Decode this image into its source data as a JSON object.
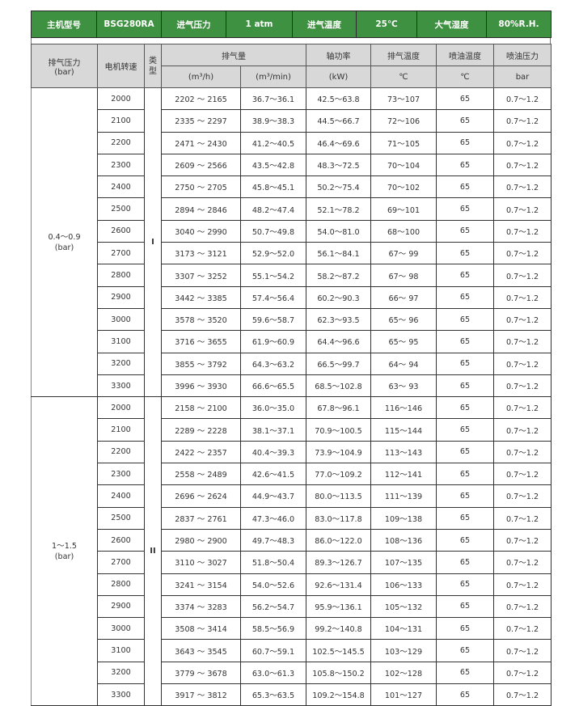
{
  "info_bar": [
    {
      "label": "主机型号",
      "value": "BSG280RA"
    },
    {
      "label": "进气压力",
      "value": "1 atm"
    },
    {
      "label": "进气温度",
      "value": "25℃"
    },
    {
      "label": "大气湿度",
      "value": "80%R.H."
    }
  ],
  "colors": {
    "header_green": "#3d9140",
    "header_gray": "#d8d8d8"
  },
  "columns": {
    "pressure": "排气压力",
    "pressure_unit": "(bar)",
    "speed": "电机转速",
    "type": "类型",
    "flow": "排气量",
    "flow_unit_h": "(m³/h)",
    "flow_unit_min": "(m³/min)",
    "power": "轴功率",
    "power_unit": "(kW)",
    "exhaust_temp": "排气温度",
    "exhaust_temp_unit": "℃",
    "oil_temp": "喷油温度",
    "oil_temp_unit": "℃",
    "oil_pressure": "喷油压力",
    "oil_pressure_unit": "bar"
  },
  "groups": [
    {
      "pressure": "0.4～0.9",
      "unit": "(bar)",
      "type": "I",
      "rows": [
        [
          "2000",
          "2202 ～ 2165",
          "36.7～36.1",
          "42.5～63.8",
          "73～107",
          "65",
          "0.7～1.2"
        ],
        [
          "2100",
          "2335 ～ 2297",
          "38.9～38.3",
          "44.5～66.7",
          "72～106",
          "65",
          "0.7～1.2"
        ],
        [
          "2200",
          "2471 ～ 2430",
          "41.2～40.5",
          "46.4～69.6",
          "71～105",
          "65",
          "0.7～1.2"
        ],
        [
          "2300",
          "2609 ～ 2566",
          "43.5～42.8",
          "48.3～72.5",
          "70～104",
          "65",
          "0.7～1.2"
        ],
        [
          "2400",
          "2750 ～ 2705",
          "45.8～45.1",
          "50.2～75.4",
          "70～102",
          "65",
          "0.7～1.2"
        ],
        [
          "2500",
          "2894 ～ 2846",
          "48.2～47.4",
          "52.1～78.2",
          "69～101",
          "65",
          "0.7～1.2"
        ],
        [
          "2600",
          "3040 ～ 2990",
          "50.7～49.8",
          "54.0～81.0",
          "68～100",
          "65",
          "0.7～1.2"
        ],
        [
          "2700",
          "3173 ～ 3121",
          "52.9～52.0",
          "56.1～84.1",
          "67～ 99",
          "65",
          "0.7～1.2"
        ],
        [
          "2800",
          "3307 ～ 3252",
          "55.1～54.2",
          "58.2～87.2",
          "67～ 98",
          "65",
          "0.7～1.2"
        ],
        [
          "2900",
          "3442 ～ 3385",
          "57.4～56.4",
          "60.2～90.3",
          "66～ 97",
          "65",
          "0.7～1.2"
        ],
        [
          "3000",
          "3578 ～ 3520",
          "59.6～58.7",
          "62.3～93.5",
          "65～ 96",
          "65",
          "0.7～1.2"
        ],
        [
          "3100",
          "3716 ～ 3655",
          "61.9～60.9",
          "64.4～96.6",
          "65～ 95",
          "65",
          "0.7～1.2"
        ],
        [
          "3200",
          "3855 ～ 3792",
          "64.3～63.2",
          "66.5～99.7",
          "64～ 94",
          "65",
          "0.7～1.2"
        ],
        [
          "3300",
          "3996 ～ 3930",
          "66.6～65.5",
          "68.5～102.8",
          "63～ 93",
          "65",
          "0.7～1.2"
        ]
      ]
    },
    {
      "pressure": "1～1.5",
      "unit": "(bar)",
      "type": "II",
      "rows": [
        [
          "2000",
          "2158 ～ 2100",
          "36.0～35.0",
          "67.8～96.1",
          "116～146",
          "65",
          "0.7～1.2"
        ],
        [
          "2100",
          "2289 ～ 2228",
          "38.1～37.1",
          "70.9～100.5",
          "115～144",
          "65",
          "0.7～1.2"
        ],
        [
          "2200",
          "2422 ～ 2357",
          "40.4～39.3",
          "73.9～104.9",
          "113～143",
          "65",
          "0.7～1.2"
        ],
        [
          "2300",
          "2558 ～ 2489",
          "42.6～41.5",
          "77.0～109.2",
          "112～141",
          "65",
          "0.7～1.2"
        ],
        [
          "2400",
          "2696 ～ 2624",
          "44.9～43.7",
          "80.0～113.5",
          "111～139",
          "65",
          "0.7～1.2"
        ],
        [
          "2500",
          "2837 ～ 2761",
          "47.3～46.0",
          "83.0～117.8",
          "109～138",
          "65",
          "0.7～1.2"
        ],
        [
          "2600",
          "2980 ～ 2900",
          "49.7～48.3",
          "86.0～122.0",
          "108～136",
          "65",
          "0.7～1.2"
        ],
        [
          "2700",
          "3110 ～ 3027",
          "51.8～50.4",
          "89.3～126.7",
          "107～135",
          "65",
          "0.7～1.2"
        ],
        [
          "2800",
          "3241 ～ 3154",
          "54.0～52.6",
          "92.6～131.4",
          "106～133",
          "65",
          "0.7～1.2"
        ],
        [
          "2900",
          "3374 ～ 3283",
          "56.2～54.7",
          "95.9～136.1",
          "105～132",
          "65",
          "0.7～1.2"
        ],
        [
          "3000",
          "3508 ～ 3414",
          "58.5～56.9",
          "99.2～140.8",
          "104～131",
          "65",
          "0.7～1.2"
        ],
        [
          "3100",
          "3643 ～ 3545",
          "60.7～59.1",
          "102.5～145.5",
          "103～129",
          "65",
          "0.7～1.2"
        ],
        [
          "3200",
          "3779 ～ 3678",
          "63.0～61.3",
          "105.8～150.2",
          "102～128",
          "65",
          "0.7～1.2"
        ],
        [
          "3300",
          "3917 ～ 3812",
          "65.3～63.5",
          "109.2～154.8",
          "101～127",
          "65",
          "0.7～1.2"
        ]
      ]
    }
  ]
}
